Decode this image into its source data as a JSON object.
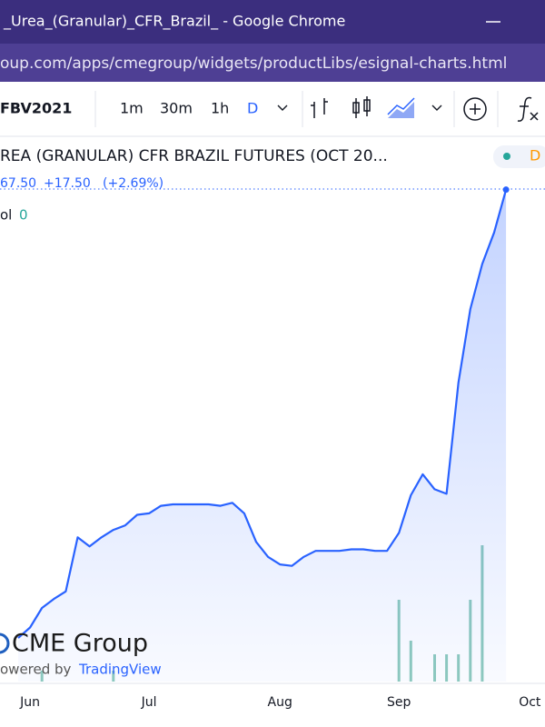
{
  "window": {
    "title": "_Urea_(Granular)_CFR_Brazil_ - Google Chrome",
    "url": "oup.com/apps/cmegroup/widgets/productLibs/esignal-charts.html"
  },
  "toolbar": {
    "symbol": "FBV2021",
    "intervals": [
      "1m",
      "30m",
      "1h",
      "D"
    ]
  },
  "legend": {
    "title": "REA (GRANULAR) CFR BRAZIL FUTURES (OCT 20...",
    "interval_badge": "D",
    "last": "67.50",
    "change": "+17.50",
    "change_pct": "(+2.69%)",
    "volume_label": "ol",
    "volume_value": "0"
  },
  "branding": {
    "logo": "CME Group",
    "powered": "owered by",
    "provider": "TradingView"
  },
  "chart_data": {
    "type": "area",
    "categories": [
      null,
      "Jun",
      null,
      null,
      null,
      null,
      null,
      null,
      null,
      null,
      null,
      "Jul",
      null,
      null,
      null,
      null,
      null,
      null,
      null,
      null,
      null,
      null,
      "Aug",
      null,
      null,
      null,
      null,
      null,
      null,
      null,
      null,
      null,
      "Sep",
      null,
      null,
      null,
      null,
      null,
      null,
      null,
      null,
      null,
      null,
      "Oct"
    ],
    "values": [
      369,
      376,
      389,
      395,
      400,
      436,
      430,
      436,
      441,
      444,
      451,
      452,
      457,
      458,
      458,
      458,
      458,
      457,
      459,
      452,
      433,
      423,
      418,
      417,
      423,
      427,
      427,
      427,
      428,
      428,
      427,
      427,
      439,
      464,
      478,
      468,
      465,
      539,
      588,
      618,
      639,
      667.5,
      null,
      null
    ],
    "color": "#2962ff",
    "ylim": [
      340,
      703
    ],
    "volume": [
      0,
      0,
      12,
      0,
      0,
      0,
      0,
      0,
      12,
      0,
      0,
      0,
      0,
      0,
      0,
      0,
      0,
      0,
      0,
      0,
      0,
      0,
      0,
      0,
      0,
      0,
      0,
      0,
      0,
      0,
      0,
      0,
      90,
      45,
      0,
      30,
      30,
      30,
      90,
      150,
      0,
      0,
      null,
      null
    ],
    "volume_color": "#8fcbbd",
    "volume_ylim": [
      0,
      600
    ]
  }
}
